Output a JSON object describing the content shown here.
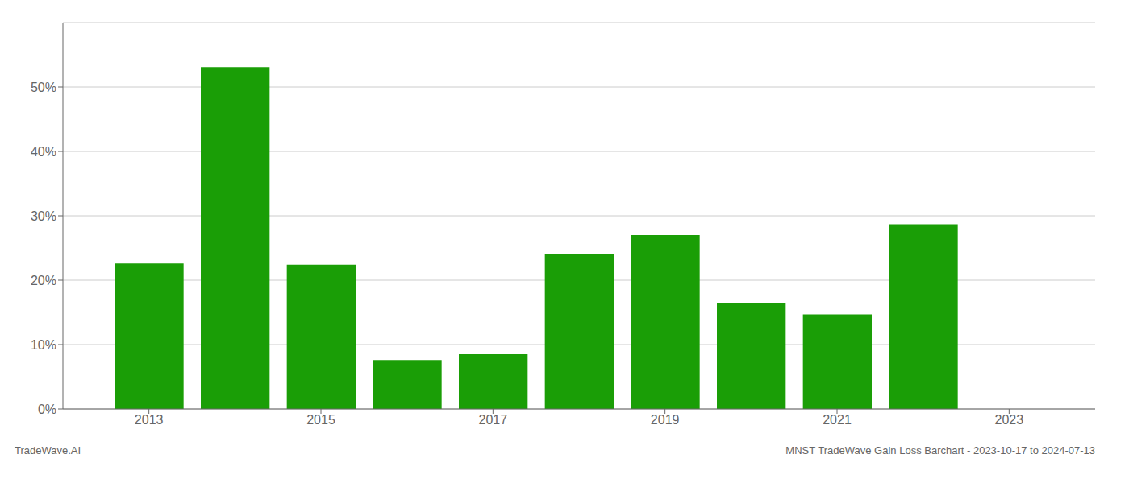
{
  "chart_data": {
    "type": "bar",
    "x": [
      2013,
      2014,
      2015,
      2016,
      2017,
      2018,
      2019,
      2020,
      2021,
      2022
    ],
    "values": [
      0.226,
      0.531,
      0.224,
      0.076,
      0.085,
      0.241,
      0.27,
      0.165,
      0.147,
      0.287
    ],
    "color": "#1a9e06",
    "xlim": [
      2012.0,
      2024.0
    ],
    "xticks": [
      2013,
      2015,
      2017,
      2019,
      2021,
      2023
    ],
    "ylim": [
      0,
      0.6
    ],
    "yticks": [
      {
        "value": 0.0,
        "label": "0%"
      },
      {
        "value": 0.1,
        "label": "10%"
      },
      {
        "value": 0.2,
        "label": "20%"
      },
      {
        "value": 0.3,
        "label": "30%"
      },
      {
        "value": 0.4,
        "label": "40%"
      },
      {
        "value": 0.5,
        "label": "50%"
      }
    ],
    "grid": true,
    "annotations": [
      "TradeWave.AI",
      "MNST TradeWave Gain Loss Barchart - 2023-10-17 to 2024-07-13"
    ]
  }
}
